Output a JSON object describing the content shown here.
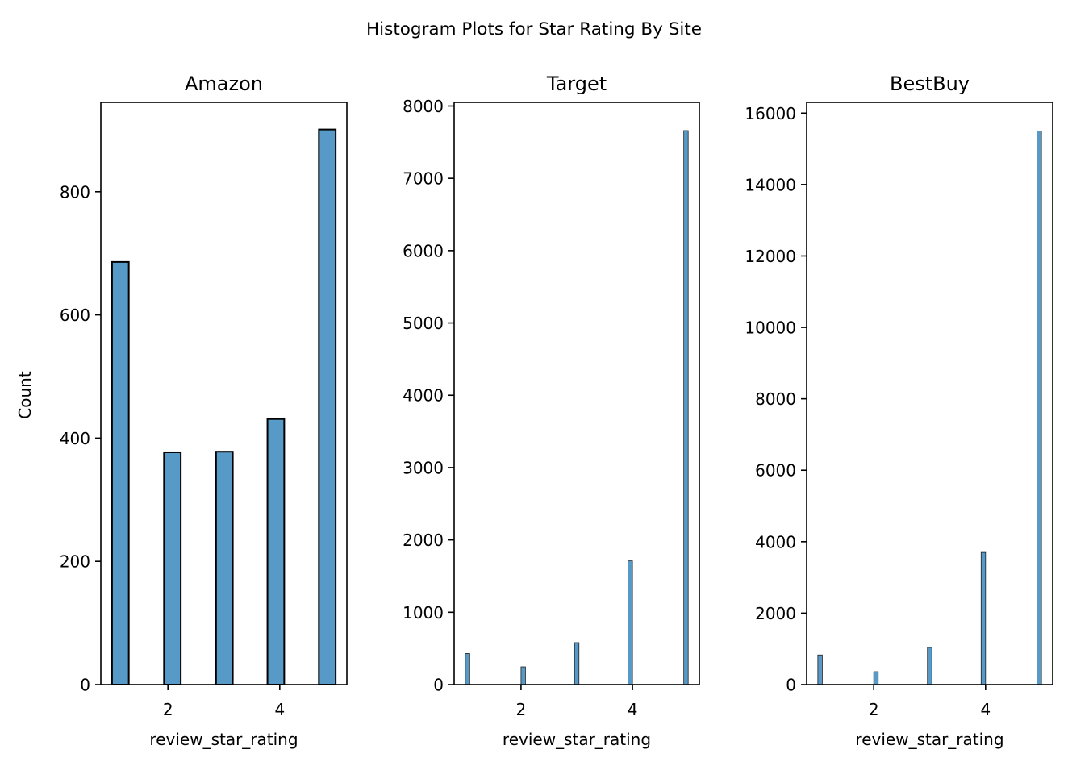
{
  "figure": {
    "title": "Histogram Plots for Star Rating By Site"
  },
  "chart_data": [
    {
      "type": "bar",
      "title": "Amazon",
      "xlabel": "review_star_rating",
      "ylabel": "Count",
      "xlim": [
        0.8,
        5.2
      ],
      "ylim": [
        0,
        945
      ],
      "xticks": [
        2,
        4
      ],
      "yticks": [
        0,
        200,
        400,
        600,
        800
      ],
      "bar_width": 0.3,
      "bars": [
        {
          "x": 1.15,
          "value": 686
        },
        {
          "x": 2.08,
          "value": 377
        },
        {
          "x": 3.01,
          "value": 378
        },
        {
          "x": 3.93,
          "value": 431
        },
        {
          "x": 4.85,
          "value": 901
        }
      ],
      "grid": false,
      "legend": "none",
      "color": "#5799c7"
    },
    {
      "type": "bar",
      "title": "Target",
      "xlabel": "review_star_rating",
      "ylabel": "",
      "xlim": [
        0.8,
        5.2
      ],
      "ylim": [
        0,
        8050
      ],
      "xticks": [
        2,
        4
      ],
      "yticks": [
        0,
        1000,
        2000,
        3000,
        4000,
        5000,
        6000,
        7000,
        8000
      ],
      "bar_width": 0.08,
      "bars": [
        {
          "x": 1.04,
          "value": 430
        },
        {
          "x": 2.04,
          "value": 245
        },
        {
          "x": 3.0,
          "value": 580
        },
        {
          "x": 3.96,
          "value": 1710
        },
        {
          "x": 4.96,
          "value": 7660
        }
      ],
      "grid": false,
      "legend": "none",
      "color": "#5799c7"
    },
    {
      "type": "bar",
      "title": "BestBuy",
      "xlabel": "review_star_rating",
      "ylabel": "",
      "xlim": [
        0.8,
        5.2
      ],
      "ylim": [
        0,
        16300
      ],
      "xticks": [
        2,
        4
      ],
      "yticks": [
        0,
        2000,
        4000,
        6000,
        8000,
        10000,
        12000,
        14000,
        16000
      ],
      "bar_width": 0.08,
      "bars": [
        {
          "x": 1.04,
          "value": 830
        },
        {
          "x": 2.04,
          "value": 360
        },
        {
          "x": 3.0,
          "value": 1040
        },
        {
          "x": 3.96,
          "value": 3700
        },
        {
          "x": 4.96,
          "value": 15500
        }
      ],
      "grid": false,
      "legend": "none",
      "color": "#5799c7"
    }
  ]
}
